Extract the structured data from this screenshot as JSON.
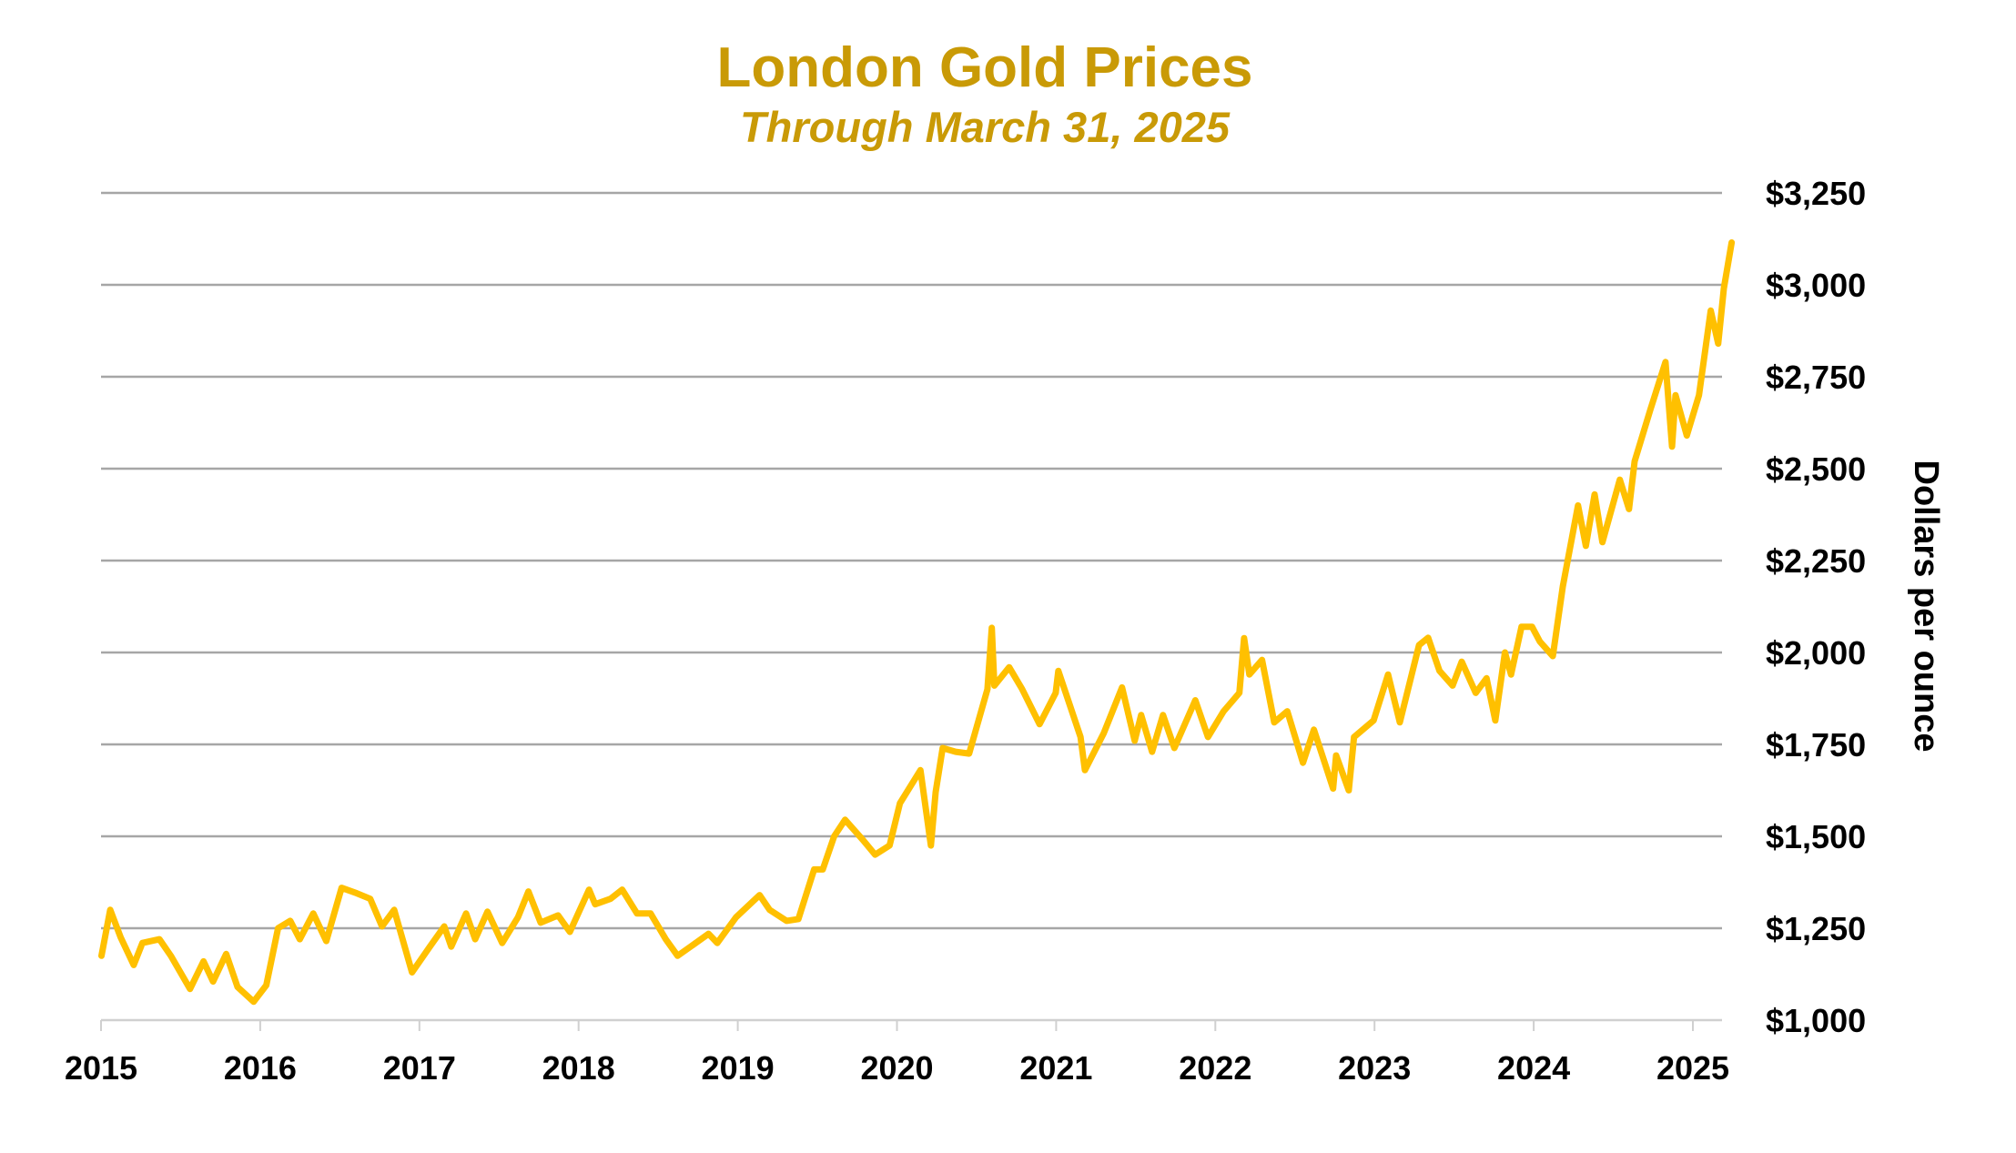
{
  "colors": {
    "title": "#C99A06",
    "line": "#FFC000",
    "grid": "#A6A6A6",
    "axis": "#D0D0D0"
  },
  "chart_data": {
    "type": "line",
    "title": "London Gold Prices",
    "subtitle": "Through March 31, 2025",
    "xlabel": "",
    "ylabel": "Dollars per ounce",
    "xlim": [
      "2015-01-01",
      "2025-03-31"
    ],
    "ylim": [
      1000,
      3250
    ],
    "y_axis_position": "right",
    "grid": true,
    "x_ticks": [
      "2015",
      "2016",
      "2017",
      "2018",
      "2019",
      "2020",
      "2021",
      "2022",
      "2023",
      "2024",
      "2025"
    ],
    "y_ticks": [
      1000,
      1250,
      1500,
      1750,
      2000,
      2250,
      2500,
      2750,
      3000,
      3250
    ],
    "y_tick_labels": [
      "$1,000",
      "$1,250",
      "$1,500",
      "$1,750",
      "$2,000",
      "$2,250",
      "$2,500",
      "$2,750",
      "$3,000",
      "$3,250"
    ],
    "series": [
      {
        "points": [
          [
            "2015-01-02",
            1175
          ],
          [
            "2015-01-22",
            1300
          ],
          [
            "2015-02-15",
            1225
          ],
          [
            "2015-03-17",
            1150
          ],
          [
            "2015-04-06",
            1210
          ],
          [
            "2015-05-15",
            1220
          ],
          [
            "2015-06-10",
            1175
          ],
          [
            "2015-07-24",
            1085
          ],
          [
            "2015-08-24",
            1160
          ],
          [
            "2015-09-15",
            1105
          ],
          [
            "2015-10-15",
            1180
          ],
          [
            "2015-11-10",
            1090
          ],
          [
            "2015-12-17",
            1050
          ],
          [
            "2016-01-15",
            1095
          ],
          [
            "2016-02-11",
            1250
          ],
          [
            "2016-03-10",
            1270
          ],
          [
            "2016-04-01",
            1220
          ],
          [
            "2016-05-02",
            1290
          ],
          [
            "2016-06-01",
            1215
          ],
          [
            "2016-07-06",
            1360
          ],
          [
            "2016-08-10",
            1345
          ],
          [
            "2016-09-10",
            1330
          ],
          [
            "2016-10-07",
            1255
          ],
          [
            "2016-11-04",
            1300
          ],
          [
            "2016-12-15",
            1130
          ],
          [
            "2017-01-25",
            1200
          ],
          [
            "2017-02-27",
            1255
          ],
          [
            "2017-03-15",
            1200
          ],
          [
            "2017-04-18",
            1290
          ],
          [
            "2017-05-09",
            1220
          ],
          [
            "2017-06-06",
            1295
          ],
          [
            "2017-07-10",
            1210
          ],
          [
            "2017-08-15",
            1280
          ],
          [
            "2017-09-08",
            1350
          ],
          [
            "2017-10-06",
            1265
          ],
          [
            "2017-11-15",
            1285
          ],
          [
            "2017-12-12",
            1240
          ],
          [
            "2018-01-25",
            1355
          ],
          [
            "2018-02-08",
            1315
          ],
          [
            "2018-03-15",
            1330
          ],
          [
            "2018-04-11",
            1355
          ],
          [
            "2018-05-15",
            1290
          ],
          [
            "2018-06-15",
            1290
          ],
          [
            "2018-07-20",
            1220
          ],
          [
            "2018-08-16",
            1175
          ],
          [
            "2018-09-15",
            1200
          ],
          [
            "2018-10-26",
            1235
          ],
          [
            "2018-11-15",
            1210
          ],
          [
            "2018-12-28",
            1280
          ],
          [
            "2019-02-20",
            1340
          ],
          [
            "2019-03-15",
            1300
          ],
          [
            "2019-04-23",
            1270
          ],
          [
            "2019-05-20",
            1275
          ],
          [
            "2019-06-25",
            1410
          ],
          [
            "2019-07-15",
            1410
          ],
          [
            "2019-08-10",
            1500
          ],
          [
            "2019-09-04",
            1545
          ],
          [
            "2019-10-15",
            1490
          ],
          [
            "2019-11-12",
            1450
          ],
          [
            "2019-12-15",
            1475
          ],
          [
            "2020-01-08",
            1590
          ],
          [
            "2020-02-24",
            1680
          ],
          [
            "2020-03-19",
            1475
          ],
          [
            "2020-03-30",
            1620
          ],
          [
            "2020-04-15",
            1740
          ],
          [
            "2020-05-15",
            1730
          ],
          [
            "2020-06-15",
            1725
          ],
          [
            "2020-07-27",
            1900
          ],
          [
            "2020-08-06",
            2067
          ],
          [
            "2020-08-12",
            1910
          ],
          [
            "2020-09-15",
            1960
          ],
          [
            "2020-10-15",
            1900
          ],
          [
            "2020-11-24",
            1805
          ],
          [
            "2020-12-31",
            1890
          ],
          [
            "2021-01-06",
            1950
          ],
          [
            "2021-02-26",
            1770
          ],
          [
            "2021-03-08",
            1680
          ],
          [
            "2021-04-20",
            1780
          ],
          [
            "2021-06-01",
            1905
          ],
          [
            "2021-06-30",
            1760
          ],
          [
            "2021-07-15",
            1830
          ],
          [
            "2021-08-09",
            1730
          ],
          [
            "2021-09-03",
            1830
          ],
          [
            "2021-09-29",
            1740
          ],
          [
            "2021-11-16",
            1870
          ],
          [
            "2021-12-15",
            1770
          ],
          [
            "2022-01-20",
            1840
          ],
          [
            "2022-02-25",
            1890
          ],
          [
            "2022-03-08",
            2039
          ],
          [
            "2022-03-20",
            1940
          ],
          [
            "2022-04-18",
            1980
          ],
          [
            "2022-05-16",
            1810
          ],
          [
            "2022-06-15",
            1840
          ],
          [
            "2022-07-21",
            1700
          ],
          [
            "2022-08-15",
            1790
          ],
          [
            "2022-09-28",
            1630
          ],
          [
            "2022-10-05",
            1720
          ],
          [
            "2022-11-03",
            1625
          ],
          [
            "2022-11-15",
            1770
          ],
          [
            "2022-12-30",
            1815
          ],
          [
            "2023-02-01",
            1940
          ],
          [
            "2023-02-28",
            1810
          ],
          [
            "2023-04-13",
            2020
          ],
          [
            "2023-05-04",
            2040
          ],
          [
            "2023-05-30",
            1950
          ],
          [
            "2023-06-29",
            1910
          ],
          [
            "2023-07-20",
            1975
          ],
          [
            "2023-08-21",
            1890
          ],
          [
            "2023-09-15",
            1930
          ],
          [
            "2023-10-05",
            1815
          ],
          [
            "2023-10-27",
            2000
          ],
          [
            "2023-11-10",
            1940
          ],
          [
            "2023-12-04",
            2070
          ],
          [
            "2023-12-28",
            2070
          ],
          [
            "2024-01-15",
            2030
          ],
          [
            "2024-02-14",
            1990
          ],
          [
            "2024-03-08",
            2180
          ],
          [
            "2024-04-12",
            2400
          ],
          [
            "2024-04-30",
            2290
          ],
          [
            "2024-05-20",
            2430
          ],
          [
            "2024-06-07",
            2300
          ],
          [
            "2024-07-17",
            2470
          ],
          [
            "2024-08-07",
            2390
          ],
          [
            "2024-08-20",
            2520
          ],
          [
            "2024-09-25",
            2660
          ],
          [
            "2024-10-30",
            2790
          ],
          [
            "2024-11-14",
            2560
          ],
          [
            "2024-11-22",
            2700
          ],
          [
            "2024-12-18",
            2590
          ],
          [
            "2025-01-15",
            2700
          ],
          [
            "2025-02-11",
            2930
          ],
          [
            "2025-02-28",
            2840
          ],
          [
            "2025-03-13",
            2990
          ],
          [
            "2025-03-31",
            3115
          ]
        ]
      }
    ]
  }
}
